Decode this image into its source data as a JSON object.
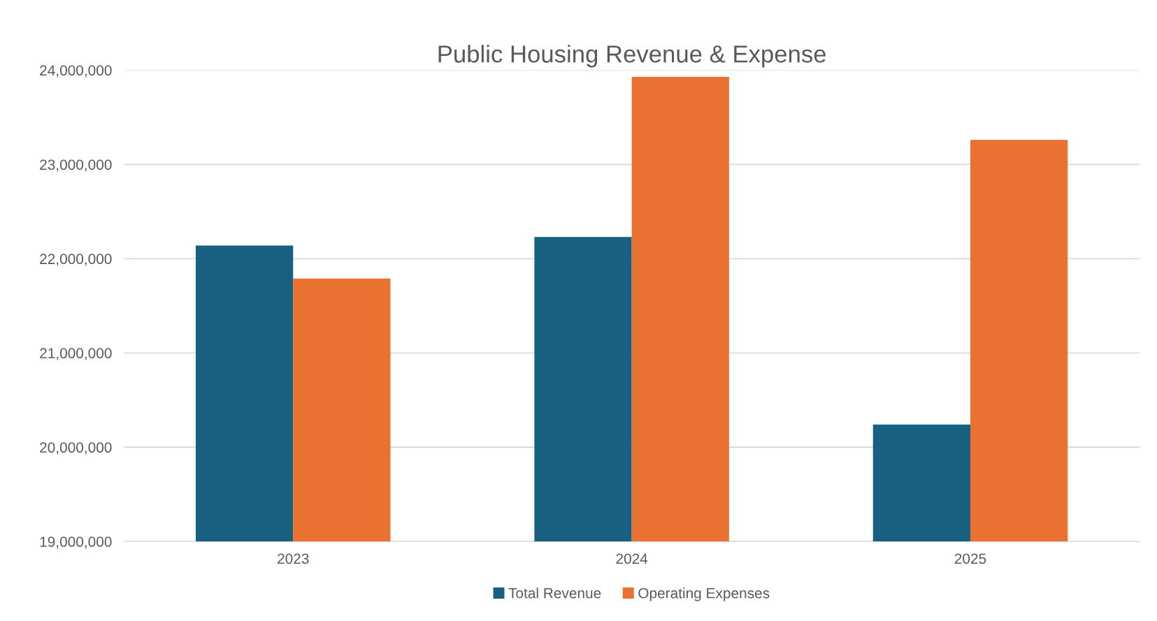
{
  "chart_data": {
    "type": "bar",
    "title": "Public Housing Revenue & Expense",
    "categories": [
      "2023",
      "2024",
      "2025"
    ],
    "series": [
      {
        "name": "Total Revenue",
        "color": "#17607f",
        "values": [
          22140000,
          22230000,
          20240000
        ]
      },
      {
        "name": "Operating Expenses",
        "color": "#e97132",
        "values": [
          21790000,
          23930000,
          23260000
        ]
      }
    ],
    "ylim": [
      19000000,
      24000000
    ],
    "yticks": [
      {
        "value": 19000000,
        "label": "19,000,000"
      },
      {
        "value": 20000000,
        "label": "20,000,000"
      },
      {
        "value": 21000000,
        "label": "21,000,000"
      },
      {
        "value": 22000000,
        "label": "22,000,000"
      },
      {
        "value": 23000000,
        "label": "23,000,000"
      },
      {
        "value": 24000000,
        "label": "24,000,000"
      }
    ],
    "grid": "y",
    "legend": "bottom"
  }
}
